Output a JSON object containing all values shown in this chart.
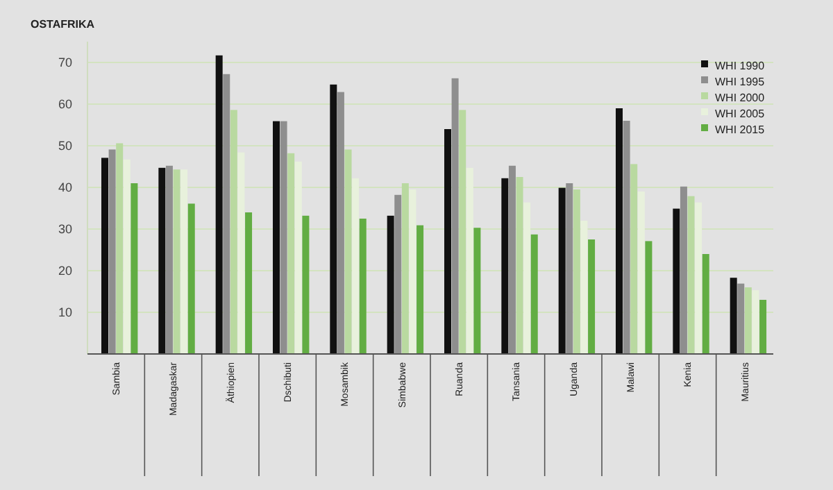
{
  "chart_data": {
    "type": "bar",
    "title": "OSTAFRIKA",
    "categories": [
      "Sambia",
      "Madagaskar",
      "Äthiopien",
      "Dschibuti",
      "Mosambik",
      "Simbabwe",
      "Ruanda",
      "Tansania",
      "Uganda",
      "Malawi",
      "Kenia",
      "Mauritius"
    ],
    "series": [
      {
        "name": "WHI 1990",
        "color": "#111111",
        "values": [
          47.1,
          44.7,
          71.7,
          55.9,
          64.7,
          33.2,
          54.0,
          42.2,
          39.9,
          59.0,
          34.9,
          18.3
        ]
      },
      {
        "name": "WHI 1995",
        "color": "#8e8e8e",
        "values": [
          49.1,
          45.2,
          67.2,
          55.9,
          62.9,
          38.2,
          66.2,
          45.2,
          41.0,
          56.0,
          40.2,
          16.9
        ]
      },
      {
        "name": "WHI 2000",
        "color": "#b9d9a0",
        "values": [
          50.6,
          44.3,
          58.6,
          48.2,
          49.1,
          41.0,
          58.6,
          42.5,
          39.5,
          45.6,
          37.9,
          16.0
        ]
      },
      {
        "name": "WHI 2005",
        "color": "#e8f1dc",
        "values": [
          46.7,
          44.3,
          48.4,
          46.2,
          42.2,
          39.5,
          44.7,
          36.4,
          32.0,
          39.0,
          36.4,
          15.3
        ]
      },
      {
        "name": "WHI 2015",
        "color": "#62ad43",
        "values": [
          41.0,
          36.1,
          34.0,
          33.2,
          32.5,
          30.9,
          30.3,
          28.7,
          27.5,
          27.1,
          24.0,
          13.0
        ]
      }
    ],
    "ylim": [
      0,
      75
    ],
    "yticks": [
      10,
      20,
      30,
      40,
      50,
      60,
      70
    ],
    "grid": "y",
    "legend": "top right"
  }
}
